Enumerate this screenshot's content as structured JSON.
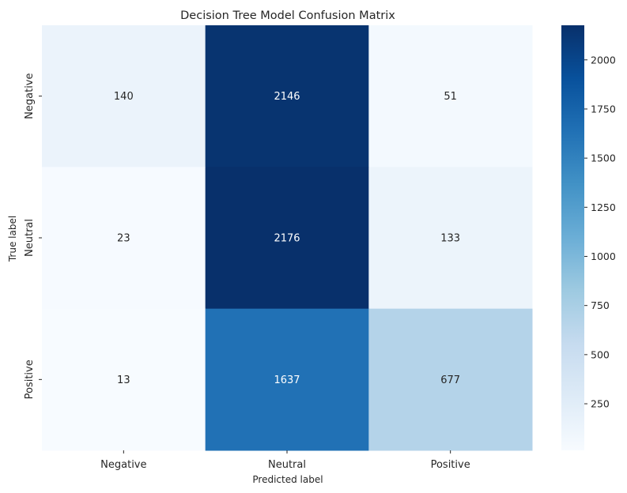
{
  "chart_data": {
    "type": "heatmap",
    "title": "Decision Tree Model Confusion Matrix",
    "xlabel": "Predicted label",
    "ylabel": "True label",
    "x_categories": [
      "Negative",
      "Neutral",
      "Positive"
    ],
    "y_categories": [
      "Negative",
      "Neutral",
      "Positive"
    ],
    "values": [
      [
        140,
        2146,
        51
      ],
      [
        23,
        2176,
        133
      ],
      [
        13,
        1637,
        677
      ]
    ],
    "colormap": "Blues",
    "colorbar": {
      "min": 13,
      "max": 2176,
      "ticks": [
        "250",
        "500",
        "750",
        "1000",
        "1250",
        "1500",
        "1750",
        "2000"
      ]
    },
    "annotation_colors": {
      "light": "#ffffff",
      "dark": "#262626"
    }
  }
}
